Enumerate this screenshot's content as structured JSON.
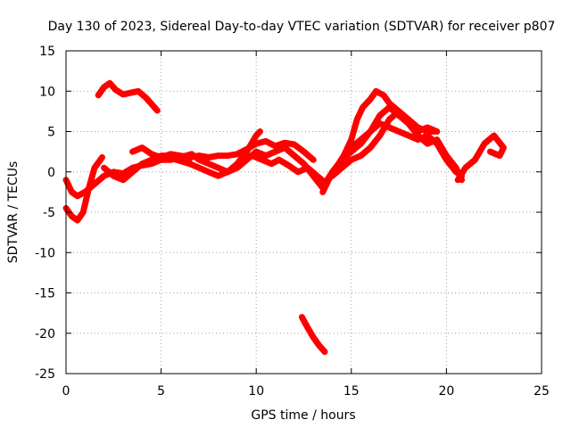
{
  "chart_data": {
    "type": "scatter",
    "title": "Day 130 of 2023, Sidereal Day-to-day VTEC variation (SDTVAR) for receiver p807",
    "xlabel": "GPS time / hours",
    "ylabel": "SDTVAR / TECUs",
    "xlim": [
      0,
      25
    ],
    "ylim": [
      -25,
      15
    ],
    "xticks": [
      0,
      5,
      10,
      15,
      20,
      25
    ],
    "yticks": [
      -25,
      -20,
      -15,
      -10,
      -5,
      0,
      5,
      10,
      15
    ],
    "grid": true,
    "marker": "+",
    "color": "#ff0000",
    "series": [
      {
        "name": "track-a",
        "points": [
          [
            1.7,
            9.5
          ],
          [
            2.0,
            10.5
          ],
          [
            2.3,
            11.0
          ],
          [
            2.6,
            10.2
          ],
          [
            3.0,
            9.6
          ],
          [
            3.4,
            9.8
          ],
          [
            3.8,
            10.0
          ],
          [
            4.2,
            9.2
          ],
          [
            4.5,
            8.4
          ],
          [
            4.8,
            7.6
          ]
        ]
      },
      {
        "name": "track-b",
        "points": [
          [
            0.0,
            -4.5
          ],
          [
            0.3,
            -5.5
          ],
          [
            0.6,
            -6.0
          ],
          [
            0.9,
            -5.0
          ],
          [
            1.2,
            -2.0
          ],
          [
            1.5,
            0.5
          ],
          [
            1.9,
            1.8
          ]
        ]
      },
      {
        "name": "track-c",
        "points": [
          [
            0.0,
            -1.0
          ],
          [
            0.3,
            -2.5
          ],
          [
            0.6,
            -3.0
          ],
          [
            1.0,
            -2.5
          ],
          [
            1.5,
            -1.5
          ],
          [
            2.0,
            -0.5
          ],
          [
            2.5,
            0.0
          ],
          [
            3.0,
            -0.2
          ],
          [
            3.5,
            0.5
          ],
          [
            4.0,
            0.8
          ],
          [
            4.5,
            1.0
          ],
          [
            5.0,
            1.5
          ],
          [
            5.5,
            1.5
          ],
          [
            6.0,
            1.8
          ],
          [
            6.5,
            1.6
          ]
        ]
      },
      {
        "name": "track-d",
        "points": [
          [
            2.0,
            0.5
          ],
          [
            2.5,
            -0.5
          ],
          [
            3.0,
            -1.0
          ],
          [
            3.5,
            0.0
          ],
          [
            4.0,
            1.0
          ],
          [
            4.5,
            1.5
          ],
          [
            5.0,
            2.0
          ],
          [
            5.5,
            2.0
          ],
          [
            6.0,
            1.8
          ],
          [
            6.6,
            2.2
          ],
          [
            7.0,
            1.5
          ],
          [
            7.5,
            1.0
          ],
          [
            8.0,
            0.5
          ],
          [
            8.5,
            0.0
          ],
          [
            9.0,
            0.5
          ],
          [
            9.5,
            1.5
          ],
          [
            10.0,
            2.5
          ],
          [
            10.5,
            2.0
          ],
          [
            11.0,
            2.5
          ],
          [
            11.5,
            3.0
          ],
          [
            12.0,
            2.0
          ],
          [
            12.5,
            1.0
          ],
          [
            13.0,
            -0.5
          ],
          [
            13.5,
            -2.0
          ]
        ]
      },
      {
        "name": "track-e",
        "points": [
          [
            3.5,
            2.5
          ],
          [
            4.0,
            3.0
          ],
          [
            4.5,
            2.2
          ],
          [
            5.0,
            1.8
          ],
          [
            5.5,
            2.2
          ],
          [
            6.0,
            2.0
          ],
          [
            6.5,
            1.8
          ],
          [
            7.0,
            2.0
          ],
          [
            7.5,
            1.8
          ],
          [
            8.0,
            2.0
          ],
          [
            8.5,
            2.0
          ],
          [
            9.0,
            2.2
          ],
          [
            9.5,
            2.8
          ],
          [
            10.0,
            3.5
          ],
          [
            10.5,
            3.8
          ],
          [
            11.0,
            3.2
          ],
          [
            11.5,
            3.6
          ],
          [
            12.0,
            3.4
          ],
          [
            12.5,
            2.5
          ],
          [
            13.0,
            1.5
          ]
        ]
      },
      {
        "name": "track-f",
        "points": [
          [
            5.8,
            1.5
          ],
          [
            6.5,
            1.0
          ],
          [
            7.0,
            0.5
          ],
          [
            7.5,
            0.0
          ],
          [
            8.0,
            -0.5
          ],
          [
            8.5,
            0.0
          ],
          [
            9.0,
            1.0
          ],
          [
            9.5,
            2.5
          ],
          [
            10.0,
            4.5
          ],
          [
            10.2,
            5.0
          ]
        ]
      },
      {
        "name": "track-g",
        "points": [
          [
            9.8,
            2.0
          ],
          [
            10.3,
            1.5
          ],
          [
            10.8,
            1.0
          ],
          [
            11.2,
            1.5
          ],
          [
            11.7,
            0.8
          ],
          [
            12.2,
            0.0
          ],
          [
            12.7,
            0.5
          ],
          [
            13.2,
            -0.5
          ],
          [
            13.7,
            -1.5
          ]
        ]
      },
      {
        "name": "track-h",
        "points": [
          [
            13.5,
            -2.5
          ],
          [
            13.8,
            -1.0
          ],
          [
            14.2,
            0.5
          ],
          [
            14.6,
            2.0
          ],
          [
            15.0,
            4.0
          ],
          [
            15.3,
            6.5
          ],
          [
            15.6,
            8.0
          ],
          [
            16.0,
            9.0
          ],
          [
            16.3,
            10.0
          ],
          [
            16.7,
            9.5
          ],
          [
            17.0,
            8.5
          ],
          [
            17.5,
            7.5
          ],
          [
            18.0,
            6.5
          ],
          [
            18.5,
            5.5
          ],
          [
            19.0,
            5.0
          ],
          [
            19.5,
            5.0
          ]
        ]
      },
      {
        "name": "track-i",
        "points": [
          [
            13.6,
            -1.5
          ],
          [
            14.0,
            0.0
          ],
          [
            14.5,
            1.5
          ],
          [
            15.0,
            2.5
          ],
          [
            15.5,
            3.5
          ],
          [
            16.0,
            5.0
          ],
          [
            16.5,
            7.0
          ],
          [
            17.0,
            8.0
          ],
          [
            17.5,
            7.0
          ],
          [
            18.0,
            6.0
          ],
          [
            18.5,
            5.0
          ],
          [
            19.0,
            5.5
          ],
          [
            19.5,
            5.0
          ]
        ]
      },
      {
        "name": "track-j",
        "points": [
          [
            14.0,
            -0.5
          ],
          [
            14.5,
            0.5
          ],
          [
            15.0,
            1.5
          ],
          [
            15.5,
            2.0
          ],
          [
            16.0,
            3.0
          ],
          [
            16.5,
            4.5
          ],
          [
            17.0,
            6.5
          ],
          [
            17.5,
            7.5
          ],
          [
            18.0,
            6.0
          ],
          [
            18.5,
            4.5
          ],
          [
            19.0,
            3.5
          ],
          [
            19.5,
            4.0
          ],
          [
            20.0,
            2.0
          ],
          [
            20.5,
            0.5
          ],
          [
            20.8,
            -1.0
          ]
        ]
      },
      {
        "name": "track-k",
        "points": [
          [
            15.0,
            3.0
          ],
          [
            15.5,
            4.0
          ],
          [
            16.0,
            5.0
          ],
          [
            16.5,
            6.0
          ],
          [
            17.0,
            5.5
          ],
          [
            17.5,
            5.0
          ],
          [
            18.0,
            4.5
          ],
          [
            18.5,
            4.0
          ],
          [
            19.0,
            4.5
          ],
          [
            19.5,
            3.5
          ],
          [
            20.0,
            1.5
          ],
          [
            20.5,
            0.0
          ],
          [
            20.8,
            -0.5
          ]
        ]
      },
      {
        "name": "track-l",
        "points": [
          [
            20.6,
            -1.0
          ],
          [
            21.0,
            0.5
          ],
          [
            21.5,
            1.5
          ],
          [
            22.0,
            3.5
          ],
          [
            22.5,
            4.5
          ],
          [
            23.0,
            3.0
          ],
          [
            22.8,
            2.0
          ],
          [
            22.3,
            2.5
          ]
        ]
      },
      {
        "name": "track-m",
        "points": [
          [
            12.4,
            -18.0
          ],
          [
            12.7,
            -19.3
          ],
          [
            13.0,
            -20.5
          ],
          [
            13.3,
            -21.5
          ],
          [
            13.6,
            -22.3
          ]
        ]
      }
    ]
  }
}
